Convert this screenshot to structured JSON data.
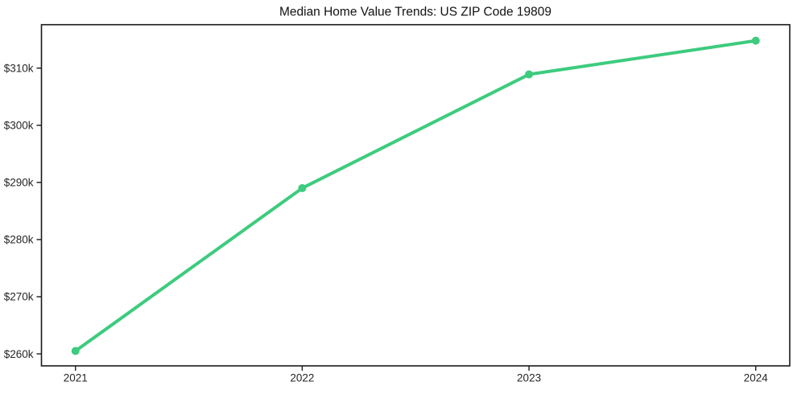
{
  "chart_data": {
    "type": "line",
    "title": "Median Home Value Trends: US ZIP Code 19809",
    "x": [
      2021,
      2022,
      2023,
      2024
    ],
    "x_tick_labels": [
      "2021",
      "2022",
      "2023",
      "2024"
    ],
    "values": [
      260500,
      289000,
      308900,
      314800
    ],
    "y_ticks": {
      "values": [
        260000,
        270000,
        280000,
        290000,
        300000,
        310000
      ],
      "labels": [
        "$260k",
        "$270k",
        "$280k",
        "$290k",
        "$300k",
        "$310k"
      ]
    },
    "xlim": [
      2020.85,
      2024.15
    ],
    "ylim": [
      257900,
      317600
    ],
    "grid": false,
    "legend": false,
    "line_width": 4,
    "marker_radius": 5,
    "colors": {
      "line": "#3dcb7e",
      "marker": "#3dcb7e",
      "axis": "#1a1a1a",
      "tick_text": "#262626",
      "title_text": "#111111",
      "background": "#ffffff"
    }
  }
}
